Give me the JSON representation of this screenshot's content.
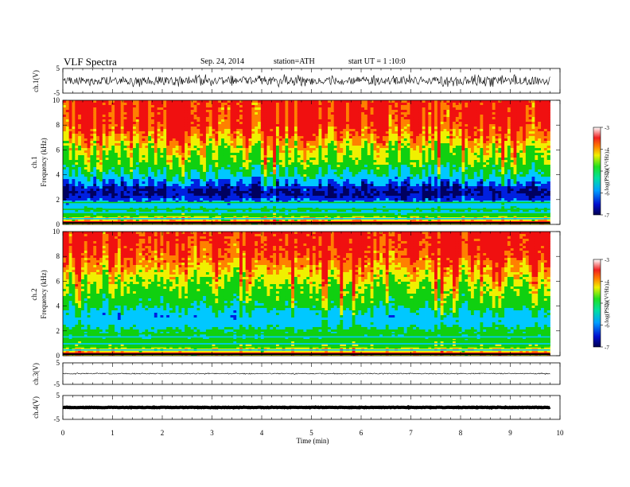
{
  "header": {
    "title": "VLF Spectra",
    "date": "Sep. 24, 2014",
    "station": "station=ATH",
    "start": "start UT = 1 :10:0"
  },
  "xaxis": {
    "label": "Time (min)",
    "ticks": [
      "0",
      "1",
      "2",
      "3",
      "4",
      "5",
      "6",
      "7",
      "8",
      "9",
      "10"
    ]
  },
  "panels": {
    "ch1": {
      "ylabel": "ch.1(V)",
      "ticks": [
        "5",
        "-5"
      ]
    },
    "spec1": {
      "ylabel1": "ch.1",
      "ylabel2": "Frequency (kHz)",
      "ticks": [
        "0",
        "2",
        "4",
        "6",
        "8",
        "10"
      ]
    },
    "spec2": {
      "ylabel1": "ch.2",
      "ylabel2": "Frequency (kHz)",
      "ticks": [
        "0",
        "2",
        "4",
        "6",
        "8",
        "10"
      ]
    },
    "ch3": {
      "ylabel": "ch.3(V)",
      "ticks": [
        "5",
        "-5"
      ]
    },
    "ch4": {
      "ylabel": "ch.4(V)",
      "ticks": [
        "5",
        "-5"
      ]
    }
  },
  "colorbar": {
    "label": "log(PSD)(V²/Hz)",
    "ticks": [
      "-3",
      "-4",
      "-5",
      "-6",
      "-7"
    ]
  },
  "colors": {
    "red": "#f01010",
    "orange": "#ff8000",
    "yellow": "#f0f000",
    "green": "#10d010",
    "cyan": "#00c8ff",
    "blue": "#0020e0",
    "navy": "#000060"
  },
  "chart_data": [
    {
      "type": "line",
      "name": "ch.1(V)",
      "xlabel": "Time (min)",
      "ylabel": "ch.1(V)",
      "xlim": [
        0,
        10
      ],
      "ylim": [
        -5,
        5
      ],
      "x": [
        0,
        9.8
      ],
      "y": [
        0,
        0
      ]
    },
    {
      "type": "heatmap",
      "name": "ch.1",
      "xlabel": "Time (min)",
      "ylabel": "Frequency (kHz)",
      "xlim": [
        0,
        10
      ],
      "ylim": [
        0,
        10
      ],
      "colorbar_range": [
        -7,
        -3
      ],
      "frequency_kHz": [
        0.5,
        1,
        1.5,
        2,
        2.5,
        3,
        3.5,
        4,
        5,
        6,
        7,
        8,
        9,
        10
      ],
      "logPSD": [
        -4,
        -5.2,
        -5.6,
        -6.3,
        -6.8,
        -6.5,
        -6.0,
        -5.3,
        -4.6,
        -4.2,
        -3.7,
        -3.3,
        -3.2,
        -3.2
      ]
    },
    {
      "type": "heatmap",
      "name": "ch.2",
      "xlabel": "Time (min)",
      "ylabel": "Frequency (kHz)",
      "xlim": [
        0,
        10
      ],
      "ylim": [
        0,
        10
      ],
      "colorbar_range": [
        -7,
        -3
      ],
      "frequency_kHz": [
        0.5,
        1,
        1.5,
        2,
        2.5,
        3,
        3.5,
        4,
        5,
        6,
        7,
        8,
        9,
        10
      ],
      "logPSD": [
        -4,
        -4.8,
        -5.0,
        -5.0,
        -5.5,
        -5.8,
        -5.5,
        -5.0,
        -4.6,
        -4.2,
        -3.8,
        -3.4,
        -3.2,
        -3.2
      ]
    },
    {
      "type": "line",
      "name": "ch.3(V)",
      "xlabel": "Time (min)",
      "ylabel": "ch.3(V)",
      "xlim": [
        0,
        10
      ],
      "ylim": [
        -5,
        5
      ],
      "x": [
        0,
        9.8
      ],
      "y": [
        0,
        0
      ]
    },
    {
      "type": "line",
      "name": "ch.4(V)",
      "xlabel": "Time (min)",
      "ylabel": "ch.4(V)",
      "xlim": [
        0,
        10
      ],
      "ylim": [
        -5,
        5
      ],
      "x": [
        0,
        9.8
      ],
      "y": [
        0,
        0
      ]
    }
  ]
}
